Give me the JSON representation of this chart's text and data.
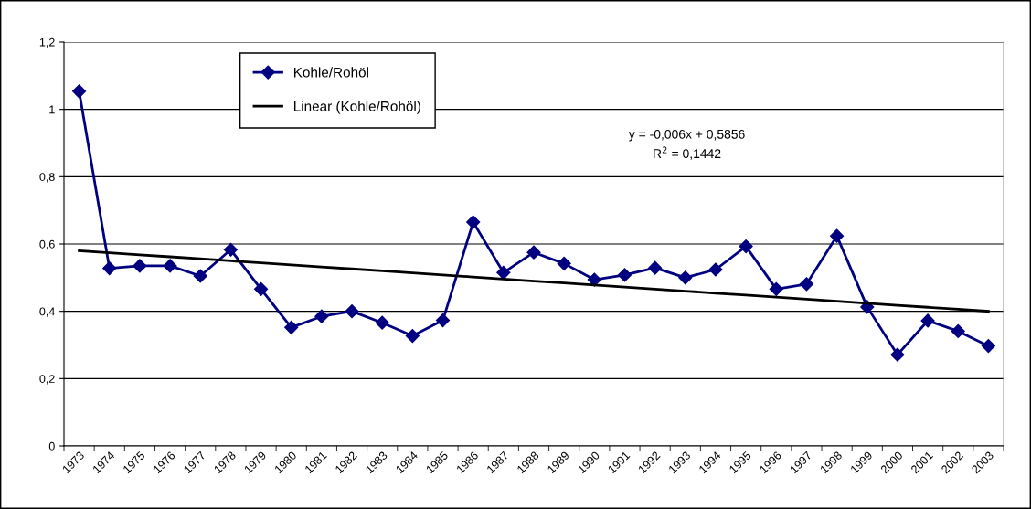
{
  "chart_data": {
    "type": "line",
    "categories": [
      "1973",
      "1974",
      "1975",
      "1976",
      "1977",
      "1978",
      "1979",
      "1980",
      "1981",
      "1982",
      "1983",
      "1984",
      "1985",
      "1986",
      "1987",
      "1988",
      "1989",
      "1990",
      "1991",
      "1992",
      "1993",
      "1994",
      "1995",
      "1996",
      "1997",
      "1998",
      "1999",
      "2000",
      "2001",
      "2002",
      "2003"
    ],
    "series": [
      {
        "name": "Kohle/Rohöl",
        "color": "#000080",
        "marker": "diamond",
        "values": [
          1.054,
          0.528,
          0.535,
          0.535,
          0.505,
          0.583,
          0.466,
          0.352,
          0.385,
          0.4,
          0.366,
          0.327,
          0.373,
          0.665,
          0.515,
          0.575,
          0.542,
          0.494,
          0.508,
          0.529,
          0.5,
          0.524,
          0.593,
          0.466,
          0.481,
          0.624,
          0.413,
          0.271,
          0.372,
          0.341,
          0.297
        ]
      },
      {
        "name": "Linear (Kohle/Rohöl)",
        "color": "#000000",
        "marker": "none",
        "values": [
          0.58,
          0.574,
          0.568,
          0.562,
          0.556,
          0.55,
          0.544,
          0.538,
          0.532,
          0.526,
          0.52,
          0.514,
          0.508,
          0.502,
          0.496,
          0.49,
          0.484,
          0.478,
          0.472,
          0.466,
          0.46,
          0.454,
          0.448,
          0.442,
          0.436,
          0.43,
          0.424,
          0.418,
          0.412,
          0.406,
          0.4
        ]
      }
    ],
    "ylim": [
      0,
      1.2
    ],
    "yticks": [
      0,
      {
        "value": 0.2,
        "label": "0,2"
      },
      {
        "value": 0.4,
        "label": "0,4"
      },
      {
        "value": 0.6,
        "label": "0,6"
      },
      {
        "value": 0.8,
        "label": "0,8"
      },
      1,
      {
        "value": 1.2,
        "label": "1,2"
      }
    ],
    "grid": "y",
    "legend": "top left",
    "line_style": "solid",
    "annotations": [
      "y = -0,006x + 0,5856\nR$^{2}$ = 0,1442"
    ]
  }
}
